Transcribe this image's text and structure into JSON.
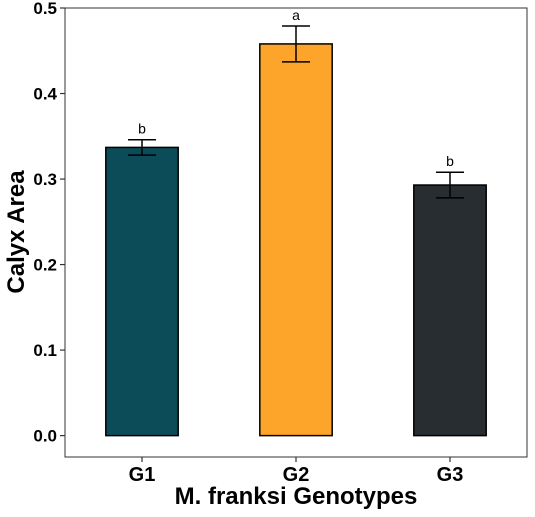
{
  "chart_data": {
    "type": "bar",
    "title": "",
    "xlabel": "M. franksi Genotypes",
    "ylabel": "Calyx Area",
    "categories": [
      "G1",
      "G2",
      "G3"
    ],
    "values": [
      0.337,
      0.458,
      0.293
    ],
    "errors": [
      0.009,
      0.021,
      0.015
    ],
    "significance_labels": [
      "b",
      "a",
      "b"
    ],
    "colors": [
      "#0c4b58",
      "#fda42b",
      "#272d30"
    ],
    "ylim": [
      -0.025,
      0.5
    ],
    "yticks": [
      "0.0",
      "0.1",
      "0.2",
      "0.3",
      "0.4",
      "0.5"
    ],
    "grid": false,
    "legend": "none"
  }
}
